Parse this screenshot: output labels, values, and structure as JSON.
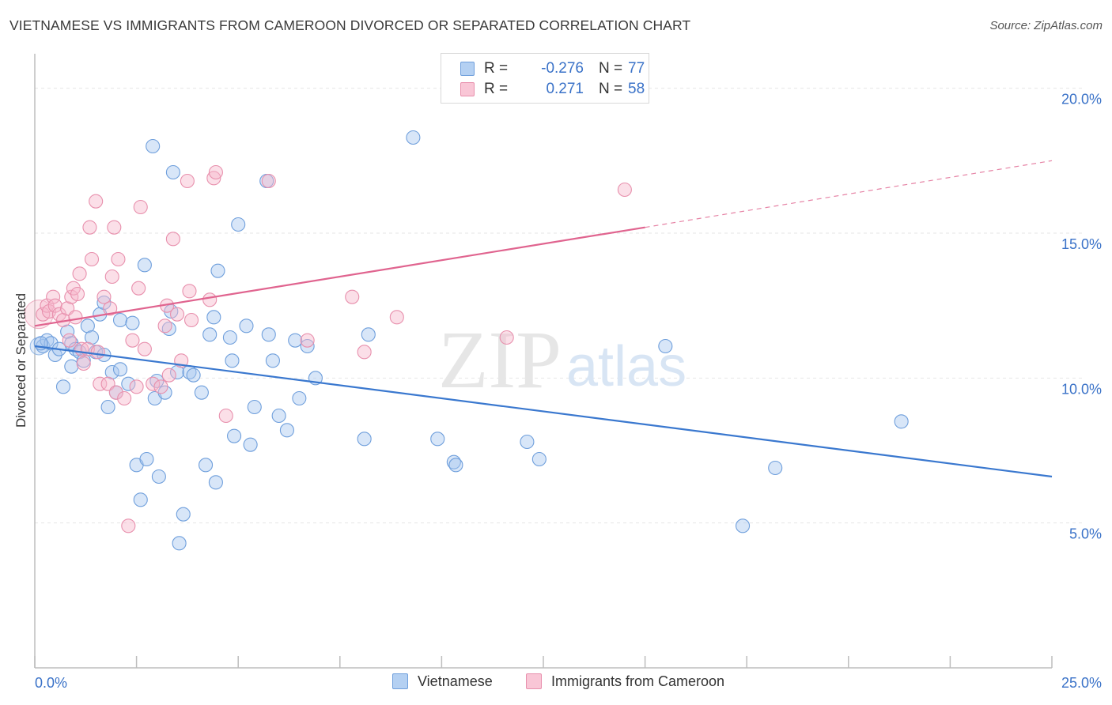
{
  "header": {
    "title": "VIETNAMESE VS IMMIGRANTS FROM CAMEROON DIVORCED OR SEPARATED CORRELATION CHART",
    "source": "Source: ZipAtlas.com"
  },
  "watermark": {
    "zip": "ZIP",
    "atlas": "atlas"
  },
  "legend": {
    "r_label": "R =",
    "n_label": "N =",
    "rows": [
      {
        "r": "-0.276",
        "n": "77"
      },
      {
        "r": "0.271",
        "n": "58"
      }
    ]
  },
  "chart_data": {
    "type": "scatter",
    "title": "VIETNAMESE VS IMMIGRANTS FROM CAMEROON DIVORCED OR SEPARATED CORRELATION CHART",
    "xlabel": "",
    "ylabel": "Divorced or Separated",
    "xlim": [
      0,
      25
    ],
    "ylim": [
      0,
      21
    ],
    "x_tick_labels": [
      "0.0%",
      "25.0%"
    ],
    "y_tick_values": [
      5,
      10,
      15,
      20
    ],
    "y_tick_labels": [
      "5.0%",
      "10.0%",
      "15.0%",
      "20.0%"
    ],
    "grid": true,
    "legend_position": "top-center",
    "colors": {
      "vietnamese_fill": "#a9c8f0",
      "vietnamese_stroke": "#6f9fdc",
      "vietnamese_line": "#3a78cf",
      "cameroon_fill": "#f7b9cc",
      "cameroon_stroke": "#e890ad",
      "cameroon_line": "#e0648f",
      "tick_text": "#3a72c8"
    },
    "series": [
      {
        "name": "Vietnamese",
        "r": -0.276,
        "n": 77,
        "trend": {
          "x0": 0,
          "y0": 11.1,
          "x1": 25,
          "y1": 6.6
        },
        "points": [
          [
            0.2,
            11.1
          ],
          [
            0.3,
            11.3
          ],
          [
            0.4,
            11.2
          ],
          [
            0.5,
            10.8
          ],
          [
            0.6,
            11.0
          ],
          [
            0.7,
            9.7
          ],
          [
            0.8,
            11.6
          ],
          [
            0.9,
            11.2
          ],
          [
            1.0,
            11.0
          ],
          [
            0.9,
            10.4
          ],
          [
            1.1,
            10.9
          ],
          [
            1.2,
            10.6
          ],
          [
            1.3,
            11.8
          ],
          [
            1.4,
            11.4
          ],
          [
            1.5,
            10.9
          ],
          [
            1.6,
            12.2
          ],
          [
            1.7,
            12.6
          ],
          [
            1.7,
            10.8
          ],
          [
            1.8,
            9.0
          ],
          [
            1.9,
            10.2
          ],
          [
            2.0,
            9.5
          ],
          [
            2.1,
            10.3
          ],
          [
            2.1,
            12.0
          ],
          [
            2.3,
            9.8
          ],
          [
            2.4,
            11.9
          ],
          [
            2.5,
            7.0
          ],
          [
            2.6,
            5.8
          ],
          [
            2.7,
            13.9
          ],
          [
            2.75,
            7.2
          ],
          [
            2.9,
            18.0
          ],
          [
            2.95,
            9.3
          ],
          [
            3.0,
            9.9
          ],
          [
            3.05,
            6.6
          ],
          [
            3.2,
            9.5
          ],
          [
            3.3,
            11.7
          ],
          [
            3.35,
            12.3
          ],
          [
            3.4,
            17.1
          ],
          [
            3.5,
            10.2
          ],
          [
            3.55,
            4.3
          ],
          [
            3.65,
            5.3
          ],
          [
            3.8,
            10.2
          ],
          [
            3.9,
            10.1
          ],
          [
            4.1,
            9.5
          ],
          [
            4.2,
            7.0
          ],
          [
            4.3,
            11.5
          ],
          [
            4.4,
            12.1
          ],
          [
            4.45,
            6.4
          ],
          [
            4.5,
            13.7
          ],
          [
            4.8,
            11.4
          ],
          [
            4.85,
            10.6
          ],
          [
            4.9,
            8.0
          ],
          [
            5.0,
            15.3
          ],
          [
            5.2,
            11.8
          ],
          [
            5.3,
            7.7
          ],
          [
            5.4,
            9.0
          ],
          [
            5.7,
            16.8
          ],
          [
            5.75,
            11.5
          ],
          [
            5.85,
            10.6
          ],
          [
            6.0,
            8.7
          ],
          [
            6.2,
            8.2
          ],
          [
            6.4,
            11.3
          ],
          [
            6.5,
            9.3
          ],
          [
            6.7,
            11.1
          ],
          [
            6.9,
            10.0
          ],
          [
            8.1,
            7.9
          ],
          [
            8.2,
            11.5
          ],
          [
            9.3,
            18.3
          ],
          [
            9.9,
            7.9
          ],
          [
            10.3,
            7.1
          ],
          [
            10.35,
            7.0
          ],
          [
            12.1,
            7.8
          ],
          [
            12.4,
            7.2
          ],
          [
            15.5,
            11.1
          ],
          [
            17.4,
            4.9
          ],
          [
            18.2,
            6.9
          ],
          [
            21.3,
            8.5
          ],
          [
            0.15,
            11.2
          ]
        ]
      },
      {
        "name": "Immigrants from Cameroon",
        "r": 0.271,
        "n": 58,
        "trend": {
          "x0": 0,
          "y0": 11.8,
          "x1": 15,
          "y1": 15.2,
          "x_dash_end": 25,
          "y_dash_end": 17.5
        },
        "points": [
          [
            0.2,
            12.2
          ],
          [
            0.3,
            12.5
          ],
          [
            0.35,
            12.3
          ],
          [
            0.45,
            12.8
          ],
          [
            0.5,
            12.5
          ],
          [
            0.6,
            12.2
          ],
          [
            0.7,
            12.0
          ],
          [
            0.8,
            12.4
          ],
          [
            0.85,
            11.3
          ],
          [
            0.9,
            12.8
          ],
          [
            0.95,
            13.1
          ],
          [
            1.0,
            12.1
          ],
          [
            1.05,
            12.9
          ],
          [
            1.1,
            13.6
          ],
          [
            1.15,
            11.0
          ],
          [
            1.2,
            10.5
          ],
          [
            1.3,
            11.0
          ],
          [
            1.35,
            15.2
          ],
          [
            1.4,
            14.1
          ],
          [
            1.5,
            16.1
          ],
          [
            1.55,
            10.9
          ],
          [
            1.6,
            9.8
          ],
          [
            1.7,
            12.8
          ],
          [
            1.8,
            9.8
          ],
          [
            1.85,
            12.4
          ],
          [
            1.9,
            13.5
          ],
          [
            1.95,
            15.2
          ],
          [
            2.0,
            9.5
          ],
          [
            2.05,
            14.1
          ],
          [
            2.2,
            9.3
          ],
          [
            2.3,
            4.9
          ],
          [
            2.4,
            11.3
          ],
          [
            2.5,
            9.7
          ],
          [
            2.55,
            13.1
          ],
          [
            2.6,
            15.9
          ],
          [
            2.7,
            11.0
          ],
          [
            2.9,
            9.8
          ],
          [
            3.1,
            9.7
          ],
          [
            3.2,
            11.8
          ],
          [
            3.25,
            12.5
          ],
          [
            3.3,
            10.1
          ],
          [
            3.4,
            14.8
          ],
          [
            3.5,
            12.2
          ],
          [
            3.6,
            10.6
          ],
          [
            3.75,
            16.8
          ],
          [
            3.8,
            13.0
          ],
          [
            3.85,
            12.0
          ],
          [
            4.3,
            12.7
          ],
          [
            4.4,
            16.9
          ],
          [
            4.45,
            17.1
          ],
          [
            4.7,
            8.7
          ],
          [
            5.75,
            16.8
          ],
          [
            6.7,
            11.3
          ],
          [
            7.8,
            12.8
          ],
          [
            8.1,
            10.9
          ],
          [
            8.9,
            12.1
          ],
          [
            11.6,
            11.4
          ],
          [
            14.5,
            16.5
          ]
        ]
      }
    ]
  },
  "bottom_legend": [
    "Vietnamese",
    "Immigrants from Cameroon"
  ]
}
